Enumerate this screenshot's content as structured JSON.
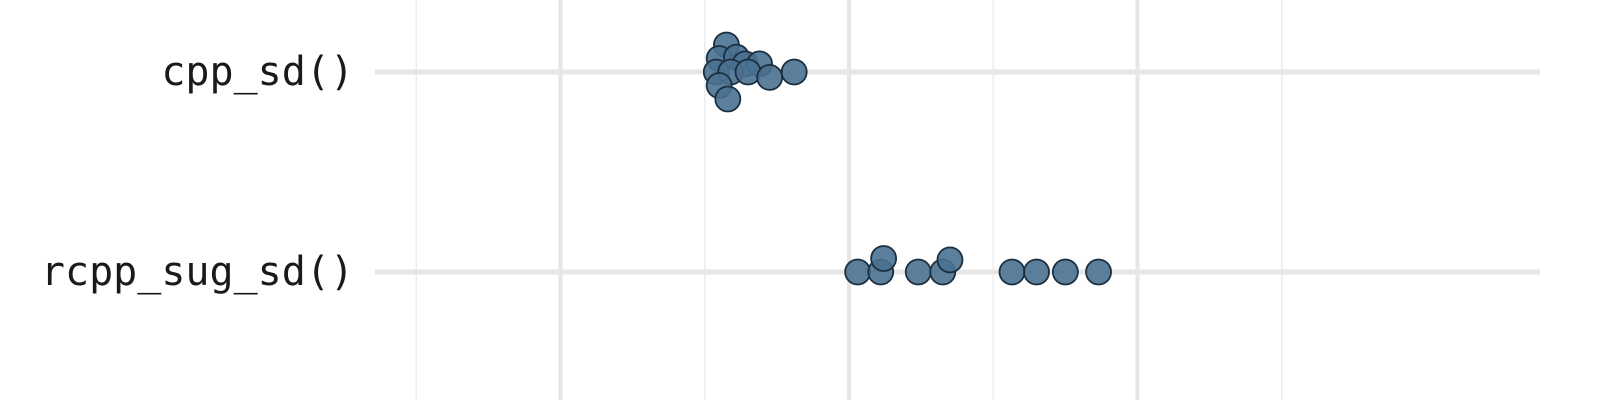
{
  "chart_data": {
    "type": "scatter",
    "categories": [
      "cpp_sd()",
      "rcpp_sug_sd()"
    ],
    "xlim": [
      0,
      8
    ],
    "x_major_ticks": [
      2,
      4,
      6
    ],
    "x_minor_ticks": [
      0,
      1,
      3,
      5,
      7
    ],
    "grid": true,
    "x_tick_labels_shown": false,
    "point_color": "#4a7191",
    "point_stroke": "#1b2f40",
    "series": [
      {
        "category": "cpp_sd()",
        "points": [
          {
            "x": 3.15,
            "offset": 1.0
          },
          {
            "x": 3.1,
            "offset": 0.5
          },
          {
            "x": 3.22,
            "offset": 0.55
          },
          {
            "x": 3.28,
            "offset": 0.3
          },
          {
            "x": 3.38,
            "offset": 0.3
          },
          {
            "x": 3.08,
            "offset": 0.0
          },
          {
            "x": 3.18,
            "offset": 0.0
          },
          {
            "x": 3.3,
            "offset": 0.0
          },
          {
            "x": 3.45,
            "offset": -0.2
          },
          {
            "x": 3.62,
            "offset": 0.0
          },
          {
            "x": 3.1,
            "offset": -0.5
          },
          {
            "x": 3.16,
            "offset": -1.0
          }
        ]
      },
      {
        "category": "rcpp_sug_sd()",
        "points": [
          {
            "x": 4.06,
            "offset": 0.0
          },
          {
            "x": 4.22,
            "offset": 0.0
          },
          {
            "x": 4.24,
            "offset": 0.5
          },
          {
            "x": 4.48,
            "offset": 0.0
          },
          {
            "x": 4.65,
            "offset": 0.0
          },
          {
            "x": 4.7,
            "offset": 0.45
          },
          {
            "x": 5.13,
            "offset": 0.0
          },
          {
            "x": 5.3,
            "offset": 0.0
          },
          {
            "x": 5.5,
            "offset": 0.0
          },
          {
            "x": 5.73,
            "offset": 0.0
          }
        ]
      }
    ]
  }
}
